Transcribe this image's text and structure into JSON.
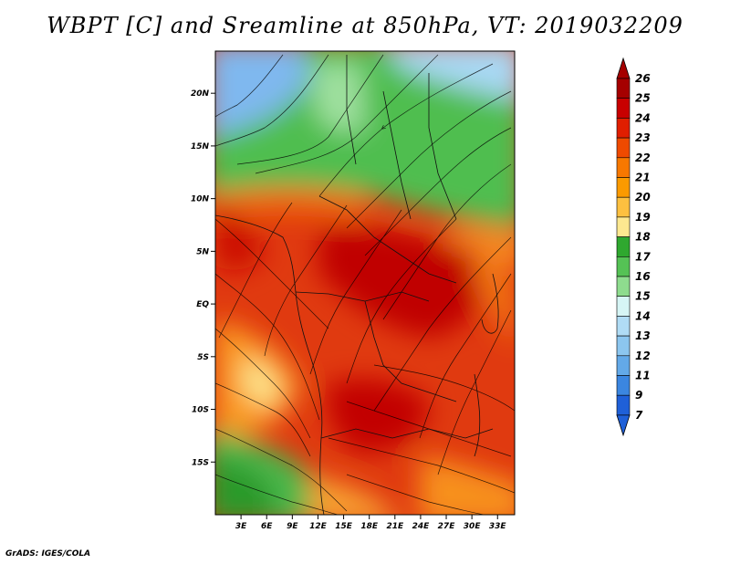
{
  "title": "WBPT [C] and Sreamline at 850hPa, VT: 2019032209",
  "footer": "GrADS: IGES/COLA",
  "map": {
    "type": "filled-contour-streamline",
    "lon_range": [
      0,
      35
    ],
    "lat_range": [
      -20,
      24
    ],
    "lat_ticks": [
      {
        "value": 20,
        "label": "20N"
      },
      {
        "value": 15,
        "label": "15N"
      },
      {
        "value": 10,
        "label": "10N"
      },
      {
        "value": 5,
        "label": "5N"
      },
      {
        "value": 0,
        "label": "EQ"
      },
      {
        "value": -5,
        "label": "5S"
      },
      {
        "value": -10,
        "label": "10S"
      },
      {
        "value": -15,
        "label": "15S"
      }
    ],
    "lon_ticks": [
      {
        "value": 3,
        "label": "3E"
      },
      {
        "value": 6,
        "label": "6E"
      },
      {
        "value": 9,
        "label": "9E"
      },
      {
        "value": 12,
        "label": "12E"
      },
      {
        "value": 15,
        "label": "15E"
      },
      {
        "value": 18,
        "label": "18E"
      },
      {
        "value": 21,
        "label": "21E"
      },
      {
        "value": 24,
        "label": "24E"
      },
      {
        "value": 27,
        "label": "27E"
      },
      {
        "value": 30,
        "label": "30E"
      },
      {
        "value": 33,
        "label": "33E"
      }
    ]
  },
  "colorbar": {
    "levels": [
      "26",
      "25",
      "24",
      "23",
      "22",
      "21",
      "20",
      "19",
      "18",
      "17",
      "16",
      "15",
      "14",
      "13",
      "12",
      "11",
      "9",
      "7"
    ],
    "colors": [
      "#a50000",
      "#c80000",
      "#e01e00",
      "#ef4a00",
      "#f77800",
      "#fb9a00",
      "#fdc040",
      "#fde890",
      "#2fa82f",
      "#55c255",
      "#8edc8e",
      "#d6f5f5",
      "#b0dcf5",
      "#8cc6ef",
      "#63a9e8",
      "#3b86e0",
      "#1f60d8"
    ],
    "top_arrow_color": "#a50000",
    "bottom_arrow_color": "#1f60d8"
  }
}
